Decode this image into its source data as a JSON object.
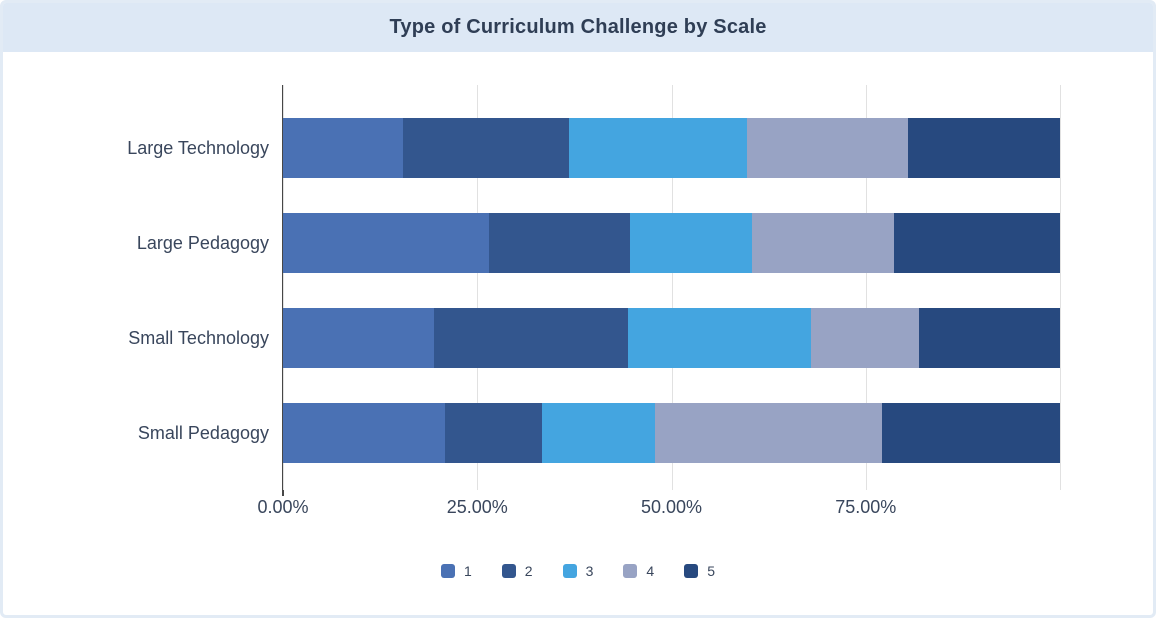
{
  "theme": {
    "card_border": "#e2ebf5",
    "header_bg": "#dde8f5",
    "title_color": "#2f3e55",
    "axis_color": "#474747",
    "grid_color": "#e1e1e1",
    "text_color": "#39465c"
  },
  "chart_data": {
    "type": "bar",
    "orientation": "horizontal",
    "stacked": true,
    "title": "Type of Curriculum Challenge by Scale",
    "categories": [
      "Large Technology",
      "Large Pedagogy",
      "Small Technology",
      "Small Pedagogy"
    ],
    "series": [
      {
        "name": "1",
        "color": "#4a71b4",
        "values": [
          15.5,
          26.5,
          19.4,
          20.8
        ]
      },
      {
        "name": "2",
        "color": "#33568e",
        "values": [
          21.3,
          18.2,
          25.0,
          12.5
        ]
      },
      {
        "name": "3",
        "color": "#44a5e0",
        "values": [
          22.9,
          15.6,
          23.6,
          14.6
        ]
      },
      {
        "name": "4",
        "color": "#98a3c4",
        "values": [
          20.8,
          18.3,
          13.9,
          29.2
        ]
      },
      {
        "name": "5",
        "color": "#27497f",
        "values": [
          19.5,
          21.4,
          18.1,
          22.9
        ]
      }
    ],
    "x_axis": {
      "range": [
        0,
        100
      ],
      "grid_values": [
        0,
        25,
        50,
        75,
        100
      ],
      "tick_labels": [
        "0.00%",
        "25.00%",
        "50.00%",
        "75.00%"
      ],
      "tick_values": [
        0,
        25,
        50,
        75
      ],
      "grid": true
    },
    "legend": {
      "position": "bottom",
      "labels": [
        "1",
        "2",
        "3",
        "4",
        "5"
      ]
    }
  }
}
